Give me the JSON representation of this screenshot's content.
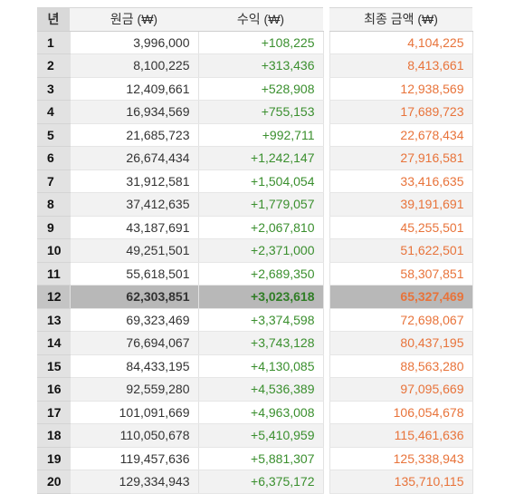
{
  "table": {
    "headers": {
      "year": "년",
      "principal": "원금 (₩)",
      "profit": "수익 (₩)",
      "final": "최종 금액 (₩)"
    },
    "highlighted_row": 12,
    "colors": {
      "profit": "#3a8f2e",
      "final": "#e8733a",
      "highlight": "#b8b8b8"
    },
    "rows": [
      {
        "year": "1",
        "principal": "3,996,000",
        "profit": "+108,225",
        "final": "4,104,225"
      },
      {
        "year": "2",
        "principal": "8,100,225",
        "profit": "+313,436",
        "final": "8,413,661"
      },
      {
        "year": "3",
        "principal": "12,409,661",
        "profit": "+528,908",
        "final": "12,938,569"
      },
      {
        "year": "4",
        "principal": "16,934,569",
        "profit": "+755,153",
        "final": "17,689,723"
      },
      {
        "year": "5",
        "principal": "21,685,723",
        "profit": "+992,711",
        "final": "22,678,434"
      },
      {
        "year": "6",
        "principal": "26,674,434",
        "profit": "+1,242,147",
        "final": "27,916,581"
      },
      {
        "year": "7",
        "principal": "31,912,581",
        "profit": "+1,504,054",
        "final": "33,416,635"
      },
      {
        "year": "8",
        "principal": "37,412,635",
        "profit": "+1,779,057",
        "final": "39,191,691"
      },
      {
        "year": "9",
        "principal": "43,187,691",
        "profit": "+2,067,810",
        "final": "45,255,501"
      },
      {
        "year": "10",
        "principal": "49,251,501",
        "profit": "+2,371,000",
        "final": "51,622,501"
      },
      {
        "year": "11",
        "principal": "55,618,501",
        "profit": "+2,689,350",
        "final": "58,307,851"
      },
      {
        "year": "12",
        "principal": "62,303,851",
        "profit": "+3,023,618",
        "final": "65,327,469"
      },
      {
        "year": "13",
        "principal": "69,323,469",
        "profit": "+3,374,598",
        "final": "72,698,067"
      },
      {
        "year": "14",
        "principal": "76,694,067",
        "profit": "+3,743,128",
        "final": "80,437,195"
      },
      {
        "year": "15",
        "principal": "84,433,195",
        "profit": "+4,130,085",
        "final": "88,563,280"
      },
      {
        "year": "16",
        "principal": "92,559,280",
        "profit": "+4,536,389",
        "final": "97,095,669"
      },
      {
        "year": "17",
        "principal": "101,091,669",
        "profit": "+4,963,008",
        "final": "106,054,678"
      },
      {
        "year": "18",
        "principal": "110,050,678",
        "profit": "+5,410,959",
        "final": "115,461,636"
      },
      {
        "year": "19",
        "principal": "119,457,636",
        "profit": "+5,881,307",
        "final": "125,338,943"
      },
      {
        "year": "20",
        "principal": "129,334,943",
        "profit": "+6,375,172",
        "final": "135,710,115"
      }
    ]
  }
}
